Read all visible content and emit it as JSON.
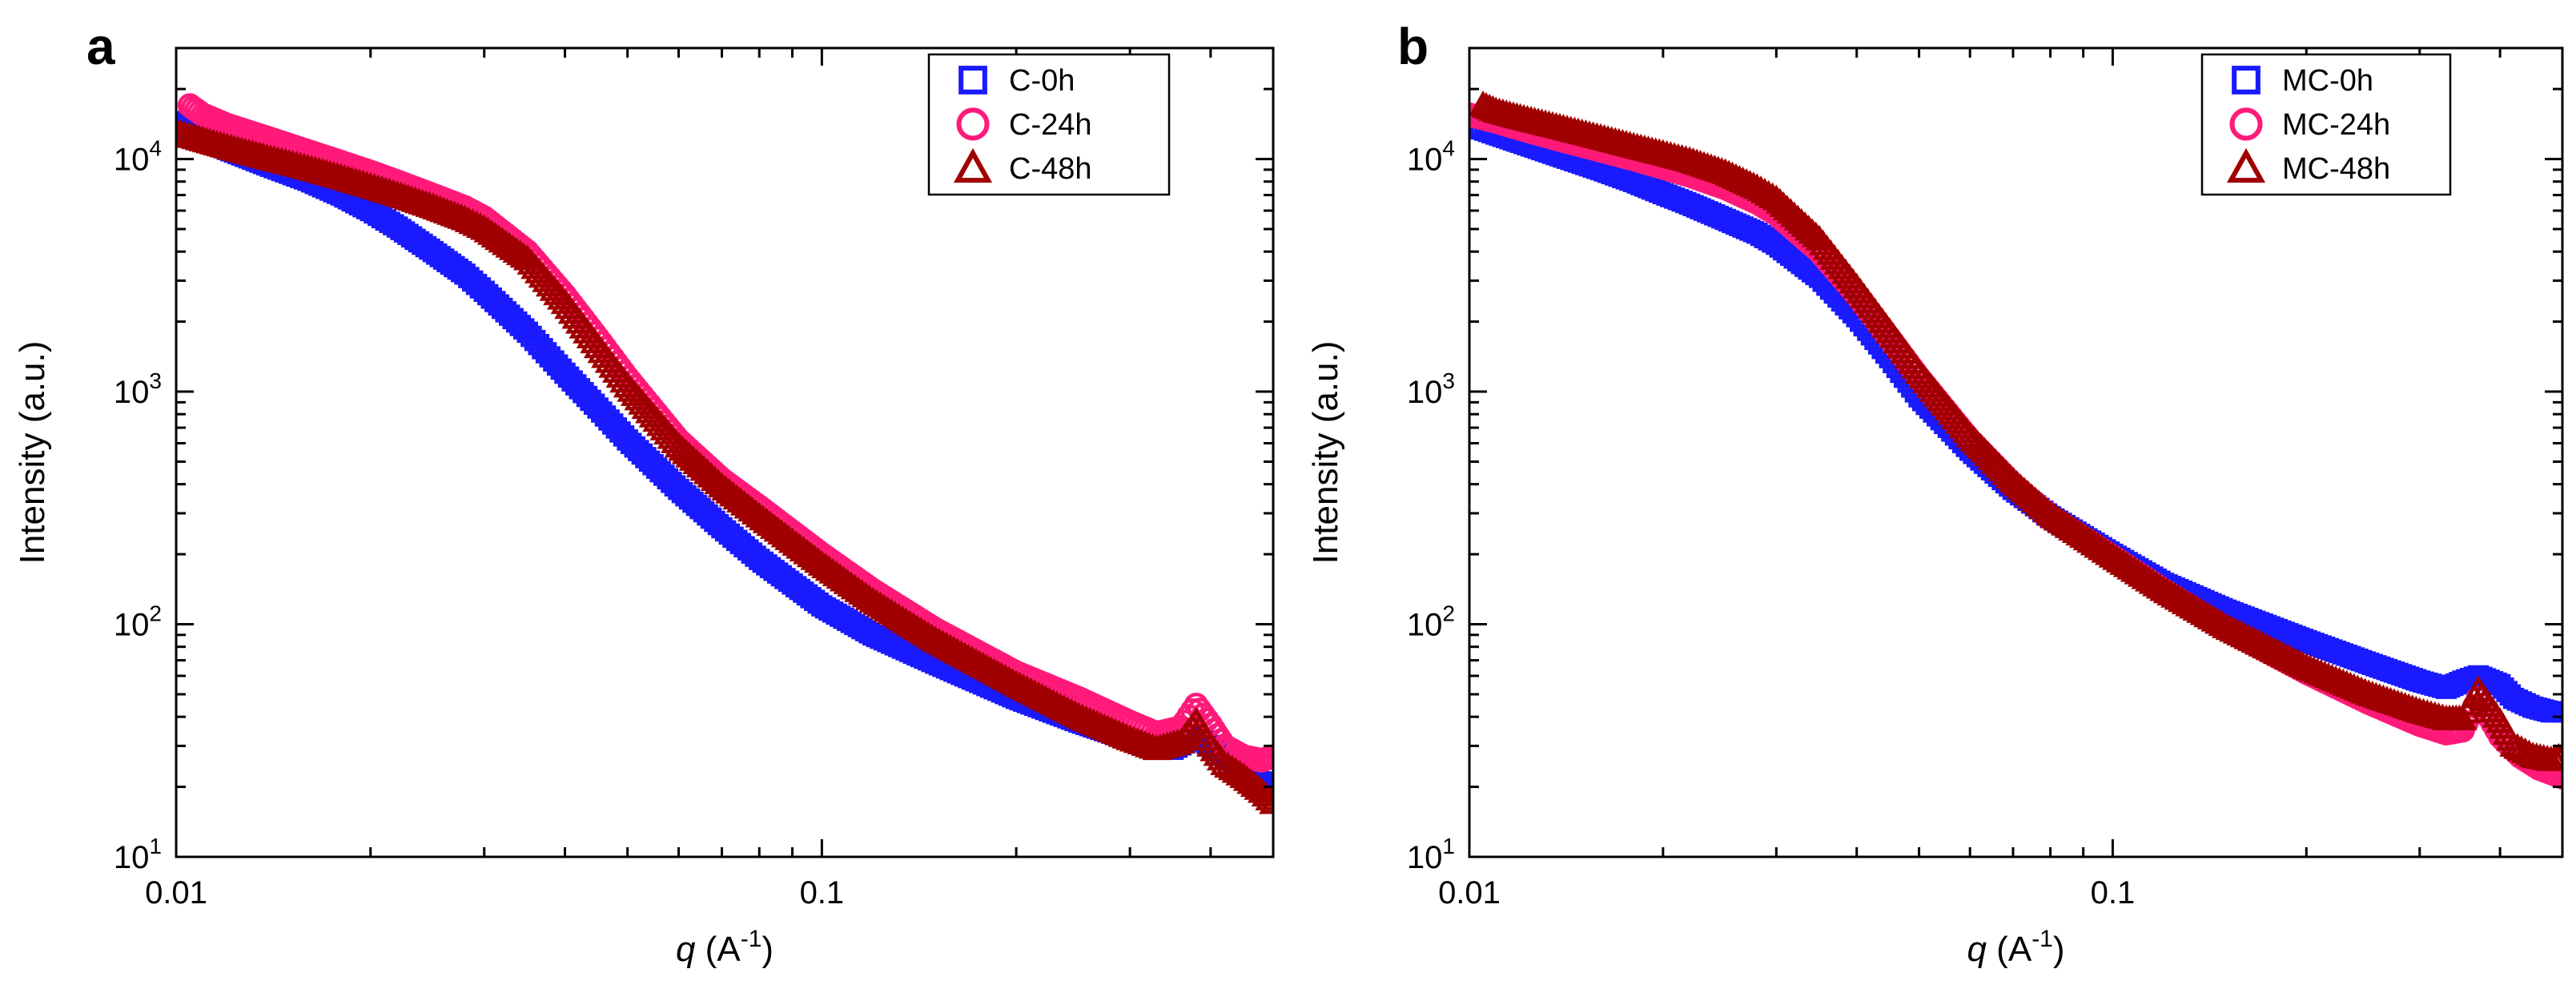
{
  "colors": {
    "blue": "#1a1aff",
    "pink": "#ff1a7a",
    "darkred": "#a00000"
  },
  "chart_data": [
    {
      "panel_label": "a",
      "type": "scatter",
      "xscale": "log",
      "yscale": "log",
      "xlim": [
        0.01,
        0.5
      ],
      "ylim": [
        10,
        30000
      ],
      "xticks": [
        {
          "value": 0.01,
          "label": "0.01"
        },
        {
          "value": 0.1,
          "label": "0.1"
        }
      ],
      "yticks": [
        {
          "value": 10,
          "base": "10",
          "exp": "1"
        },
        {
          "value": 100,
          "base": "10",
          "exp": "2"
        },
        {
          "value": 1000,
          "base": "10",
          "exp": "3"
        },
        {
          "value": 10000,
          "base": "10",
          "exp": "4"
        }
      ],
      "xlabel": {
        "italic": "q",
        "text": " (A",
        "sup": "-1",
        "end": ")"
      },
      "ylabel": "Intensity (a.u.)",
      "legend_position": "top-right",
      "series": [
        {
          "name": "C-0h",
          "marker": "square",
          "color": "#1a1aff",
          "points": [
            [
              0.01,
              14500
            ],
            [
              0.011,
              12500
            ],
            [
              0.012,
              11000
            ],
            [
              0.014,
              9300
            ],
            [
              0.016,
              8100
            ],
            [
              0.018,
              7000
            ],
            [
              0.02,
              6000
            ],
            [
              0.022,
              5100
            ],
            [
              0.025,
              4000
            ],
            [
              0.028,
              3200
            ],
            [
              0.03,
              2700
            ],
            [
              0.035,
              1800
            ],
            [
              0.04,
              1200
            ],
            [
              0.045,
              850
            ],
            [
              0.05,
              620
            ],
            [
              0.06,
              380
            ],
            [
              0.07,
              260
            ],
            [
              0.08,
              190
            ],
            [
              0.1,
              120
            ],
            [
              0.12,
              90
            ],
            [
              0.15,
              68
            ],
            [
              0.2,
              48
            ],
            [
              0.25,
              38
            ],
            [
              0.3,
              32
            ],
            [
              0.35,
              29
            ],
            [
              0.38,
              33
            ],
            [
              0.4,
              30
            ],
            [
              0.43,
              26
            ],
            [
              0.45,
              24
            ],
            [
              0.48,
              21
            ],
            [
              0.5,
              19
            ]
          ]
        },
        {
          "name": "C-24h",
          "marker": "circle",
          "color": "#ff1a7a",
          "points": [
            [
              0.0105,
              17000
            ],
            [
              0.011,
              15500
            ],
            [
              0.012,
              14000
            ],
            [
              0.014,
              12200
            ],
            [
              0.016,
              10800
            ],
            [
              0.018,
              9700
            ],
            [
              0.02,
              8800
            ],
            [
              0.022,
              8000
            ],
            [
              0.025,
              7000
            ],
            [
              0.028,
              6200
            ],
            [
              0.03,
              5600
            ],
            [
              0.035,
              4000
            ],
            [
              0.04,
              2600
            ],
            [
              0.045,
              1700
            ],
            [
              0.05,
              1150
            ],
            [
              0.06,
              620
            ],
            [
              0.07,
              420
            ],
            [
              0.08,
              320
            ],
            [
              0.1,
              200
            ],
            [
              0.12,
              140
            ],
            [
              0.15,
              95
            ],
            [
              0.2,
              62
            ],
            [
              0.25,
              48
            ],
            [
              0.3,
              38
            ],
            [
              0.33,
              34
            ],
            [
              0.36,
              36
            ],
            [
              0.38,
              45
            ],
            [
              0.4,
              37
            ],
            [
              0.42,
              30
            ],
            [
              0.45,
              27
            ],
            [
              0.48,
              26
            ],
            [
              0.5,
              27
            ]
          ]
        },
        {
          "name": "C-48h",
          "marker": "triangle",
          "color": "#a00000",
          "points": [
            [
              0.01,
              13000
            ],
            [
              0.011,
              12000
            ],
            [
              0.012,
              11200
            ],
            [
              0.014,
              10000
            ],
            [
              0.016,
              9100
            ],
            [
              0.018,
              8300
            ],
            [
              0.02,
              7600
            ],
            [
              0.022,
              7000
            ],
            [
              0.025,
              6200
            ],
            [
              0.028,
              5500
            ],
            [
              0.03,
              5000
            ],
            [
              0.035,
              3700
            ],
            [
              0.04,
              2400
            ],
            [
              0.045,
              1550
            ],
            [
              0.05,
              1050
            ],
            [
              0.06,
              580
            ],
            [
              0.07,
              390
            ],
            [
              0.08,
              290
            ],
            [
              0.1,
              180
            ],
            [
              0.12,
              125
            ],
            [
              0.15,
              85
            ],
            [
              0.2,
              55
            ],
            [
              0.25,
              40
            ],
            [
              0.3,
              32
            ],
            [
              0.33,
              29
            ],
            [
              0.36,
              31
            ],
            [
              0.38,
              38
            ],
            [
              0.4,
              30
            ],
            [
              0.42,
              25
            ],
            [
              0.45,
              22
            ],
            [
              0.48,
              19
            ],
            [
              0.5,
              17
            ]
          ]
        }
      ]
    },
    {
      "panel_label": "b",
      "type": "scatter",
      "xscale": "log",
      "yscale": "log",
      "xlim": [
        0.01,
        0.5
      ],
      "ylim": [
        10,
        30000
      ],
      "xticks": [
        {
          "value": 0.01,
          "label": "0.01"
        },
        {
          "value": 0.1,
          "label": "0.1"
        }
      ],
      "yticks": [
        {
          "value": 10,
          "base": "10",
          "exp": "1"
        },
        {
          "value": 100,
          "base": "10",
          "exp": "2"
        },
        {
          "value": 1000,
          "base": "10",
          "exp": "3"
        },
        {
          "value": 10000,
          "base": "10",
          "exp": "4"
        }
      ],
      "xlabel": {
        "italic": "q",
        "text": " (A",
        "sup": "-1",
        "end": ")"
      },
      "ylabel": "Intensity (a.u.)",
      "legend_position": "top-right",
      "series": [
        {
          "name": "MC-0h",
          "marker": "square",
          "color": "#1a1aff",
          "points": [
            [
              0.01,
              14000
            ],
            [
              0.011,
              12800
            ],
            [
              0.012,
              11800
            ],
            [
              0.014,
              10200
            ],
            [
              0.016,
              9000
            ],
            [
              0.018,
              8000
            ],
            [
              0.02,
              7100
            ],
            [
              0.022,
              6400
            ],
            [
              0.025,
              5500
            ],
            [
              0.028,
              4800
            ],
            [
              0.03,
              4300
            ],
            [
              0.035,
              3100
            ],
            [
              0.04,
              2100
            ],
            [
              0.045,
              1400
            ],
            [
              0.05,
              950
            ],
            [
              0.06,
              560
            ],
            [
              0.07,
              380
            ],
            [
              0.08,
              290
            ],
            [
              0.1,
              200
            ],
            [
              0.12,
              150
            ],
            [
              0.15,
              115
            ],
            [
              0.2,
              85
            ],
            [
              0.25,
              68
            ],
            [
              0.3,
              57
            ],
            [
              0.33,
              53
            ],
            [
              0.35,
              57
            ],
            [
              0.37,
              60
            ],
            [
              0.4,
              55
            ],
            [
              0.42,
              48
            ],
            [
              0.45,
              44
            ],
            [
              0.48,
              42
            ],
            [
              0.5,
              42
            ]
          ]
        },
        {
          "name": "MC-24h",
          "marker": "circle",
          "color": "#ff1a7a",
          "points": [
            [
              0.01,
              15500
            ],
            [
              0.011,
              14500
            ],
            [
              0.012,
              13500
            ],
            [
              0.014,
              12000
            ],
            [
              0.016,
              10900
            ],
            [
              0.018,
              10000
            ],
            [
              0.02,
              9200
            ],
            [
              0.022,
              8500
            ],
            [
              0.025,
              7500
            ],
            [
              0.028,
              6500
            ],
            [
              0.03,
              5800
            ],
            [
              0.035,
              4000
            ],
            [
              0.04,
              2600
            ],
            [
              0.045,
              1700
            ],
            [
              0.05,
              1150
            ],
            [
              0.06,
              620
            ],
            [
              0.07,
              400
            ],
            [
              0.08,
              290
            ],
            [
              0.1,
              195
            ],
            [
              0.12,
              140
            ],
            [
              0.15,
              95
            ],
            [
              0.2,
              62
            ],
            [
              0.25,
              46
            ],
            [
              0.3,
              37
            ],
            [
              0.33,
              34
            ],
            [
              0.35,
              35
            ],
            [
              0.37,
              48
            ],
            [
              0.4,
              33
            ],
            [
              0.43,
              27
            ],
            [
              0.46,
              24
            ],
            [
              0.5,
              22
            ]
          ]
        },
        {
          "name": "MC-48h",
          "marker": "triangle",
          "color": "#a00000",
          "points": [
            [
              0.0105,
              17000
            ],
            [
              0.011,
              16000
            ],
            [
              0.012,
              15000
            ],
            [
              0.014,
              13500
            ],
            [
              0.016,
              12300
            ],
            [
              0.018,
              11300
            ],
            [
              0.02,
              10500
            ],
            [
              0.022,
              9800
            ],
            [
              0.025,
              8700
            ],
            [
              0.028,
              7500
            ],
            [
              0.03,
              6700
            ],
            [
              0.035,
              4500
            ],
            [
              0.04,
              2800
            ],
            [
              0.045,
              1800
            ],
            [
              0.05,
              1200
            ],
            [
              0.06,
              640
            ],
            [
              0.07,
              410
            ],
            [
              0.08,
              295
            ],
            [
              0.1,
              195
            ],
            [
              0.12,
              140
            ],
            [
              0.15,
              97
            ],
            [
              0.2,
              65
            ],
            [
              0.25,
              50
            ],
            [
              0.3,
              42
            ],
            [
              0.33,
              39
            ],
            [
              0.35,
              39
            ],
            [
              0.37,
              52
            ],
            [
              0.4,
              38
            ],
            [
              0.42,
              30
            ],
            [
              0.45,
              27
            ],
            [
              0.48,
              26
            ],
            [
              0.5,
              27
            ]
          ]
        }
      ]
    }
  ]
}
